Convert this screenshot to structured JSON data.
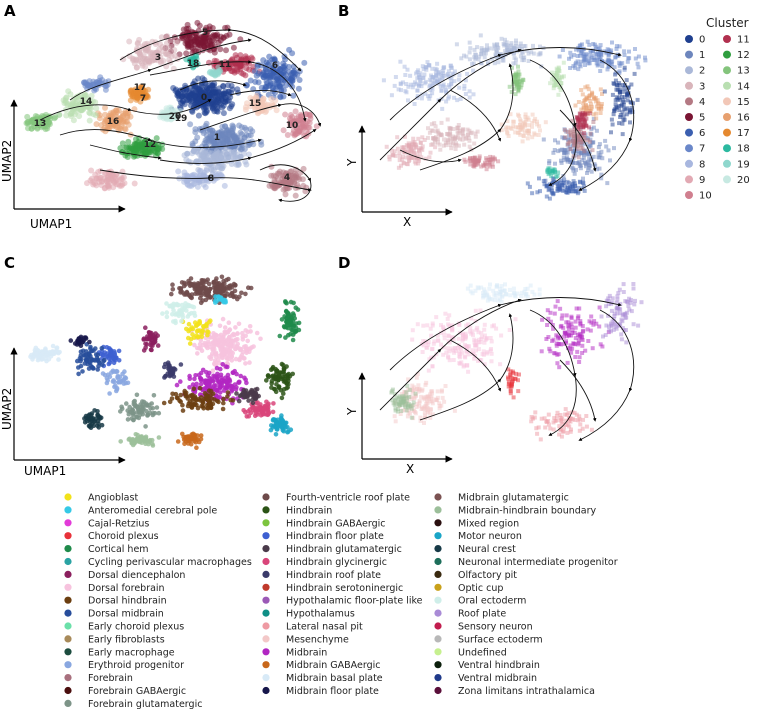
{
  "panels": {
    "A": {
      "letter": "A",
      "xlabel": "UMAP1",
      "ylabel": "UMAP2"
    },
    "B": {
      "letter": "B",
      "xlabel": "X",
      "ylabel": "Y"
    },
    "C": {
      "letter": "C",
      "xlabel": "UMAP1",
      "ylabel": "UMAP2"
    },
    "D": {
      "letter": "D",
      "xlabel": "X",
      "ylabel": "Y"
    }
  },
  "cluster_legend": {
    "title": "Cluster",
    "items": [
      {
        "label": "0",
        "color": "#1f3f8f"
      },
      {
        "label": "1",
        "color": "#6d86bd"
      },
      {
        "label": "2",
        "color": "#aab8d8"
      },
      {
        "label": "3",
        "color": "#d9b5bb"
      },
      {
        "label": "4",
        "color": "#b47983"
      },
      {
        "label": "5",
        "color": "#7a1533"
      },
      {
        "label": "6",
        "color": "#3b5fb0"
      },
      {
        "label": "7",
        "color": "#6a87c9"
      },
      {
        "label": "8",
        "color": "#a8b7df"
      },
      {
        "label": "9",
        "color": "#e2a9b3"
      },
      {
        "label": "10",
        "color": "#d07f8f"
      },
      {
        "label": "11",
        "color": "#b1304f"
      },
      {
        "label": "12",
        "color": "#2f9e3f"
      },
      {
        "label": "13",
        "color": "#84c47c"
      },
      {
        "label": "14",
        "color": "#b9dfb1"
      },
      {
        "label": "15",
        "color": "#f2c7b7"
      },
      {
        "label": "16",
        "color": "#e7a06f"
      },
      {
        "label": "17",
        "color": "#e5892f"
      },
      {
        "label": "18",
        "color": "#2cb9a0"
      },
      {
        "label": "19",
        "color": "#8fd7cd"
      },
      {
        "label": "20",
        "color": "#c7e9e2"
      }
    ]
  },
  "chart_data": [
    {
      "panel": "A",
      "type": "scatter",
      "title": "",
      "xlabel": "UMAP1",
      "ylabel": "UMAP2",
      "embedding": "UMAP with RNA velocity streamlines",
      "cluster_labels_shown": [
        "0",
        "1",
        "2",
        "3",
        "4",
        "5",
        "6",
        "8",
        "10",
        "11",
        "12",
        "13",
        "14",
        "15",
        "16",
        "17",
        "18",
        "20"
      ]
    },
    {
      "panel": "B",
      "type": "scatter",
      "title": "",
      "xlabel": "X",
      "ylabel": "Y",
      "embedding": "spatial coordinates with velocity streamlines, colored by cluster"
    },
    {
      "panel": "C",
      "type": "scatter",
      "title": "",
      "xlabel": "UMAP1",
      "ylabel": "UMAP2",
      "embedding": "UMAP colored by cell type"
    },
    {
      "panel": "D",
      "type": "scatter",
      "title": "",
      "xlabel": "X",
      "ylabel": "Y",
      "embedding": "spatial coordinates with velocity streamlines, colored by cell type"
    }
  ],
  "celltype_legend": {
    "columns": [
      [
        {
          "label": "Angioblast",
          "color": "#f2e21a"
        },
        {
          "label": "Anteromedial cerebral pole",
          "color": "#36c9e6"
        },
        {
          "label": "Cajal-Retzius",
          "color": "#e23bd8"
        },
        {
          "label": "Choroid plexus",
          "color": "#e8323a"
        },
        {
          "label": "Cortical hem",
          "color": "#1f8a4a"
        },
        {
          "label": "Cycling perivascular macrophages",
          "color": "#2aa3a3"
        },
        {
          "label": "Dorsal diencephalon",
          "color": "#8b1f5e"
        },
        {
          "label": "Dorsal forebrain",
          "color": "#f7c3de"
        },
        {
          "label": "Dorsal hindbrain",
          "color": "#6b3e10"
        },
        {
          "label": "Dorsal midbrain",
          "color": "#274d9b"
        },
        {
          "label": "Early choroid plexus",
          "color": "#6be0a9"
        },
        {
          "label": "Early fibroblasts",
          "color": "#a88a5a"
        },
        {
          "label": "Early macrophage",
          "color": "#1c4c3e"
        },
        {
          "label": "Erythroid progenitor",
          "color": "#89a7e0"
        },
        {
          "label": "Forebrain",
          "color": "#a8707e"
        },
        {
          "label": "Forebrain GABAergic",
          "color": "#4a0e0e"
        },
        {
          "label": "Forebrain glutamatergic",
          "color": "#7d9488"
        }
      ],
      [
        {
          "label": "Fourth-ventricle roof plate",
          "color": "#6e4a4a"
        },
        {
          "label": "Hindbrain",
          "color": "#2b5316"
        },
        {
          "label": "Hindbrain GABAergic",
          "color": "#7cc43e"
        },
        {
          "label": "Hindbrain floor plate",
          "color": "#3d5fd1"
        },
        {
          "label": "Hindbrain glutamatergic",
          "color": "#4a3a4a"
        },
        {
          "label": "Hindbrain glycinergic",
          "color": "#d9457a"
        },
        {
          "label": "Hindbrain roof plate",
          "color": "#3a3a6a"
        },
        {
          "label": "Hindbrain serotoninergic",
          "color": "#c0392b"
        },
        {
          "label": "Hypothalamic floor-plate like",
          "color": "#9b59b6"
        },
        {
          "label": "Hypothalamus",
          "color": "#0f8f86"
        },
        {
          "label": "Lateral nasal pit",
          "color": "#ee9aa3"
        },
        {
          "label": "Mesenchyme",
          "color": "#f3c8c8"
        },
        {
          "label": "Midbrain",
          "color": "#b126c2"
        },
        {
          "label": "Midbrain GABAergic",
          "color": "#c8671b"
        },
        {
          "label": "Midbrain basal plate",
          "color": "#d8eaf7"
        },
        {
          "label": "Midbrain floor plate",
          "color": "#16164a"
        }
      ],
      [
        {
          "label": "Midbrain glutamatergic",
          "color": "#7b5252"
        },
        {
          "label": "Midbrain-hindbrain boundary",
          "color": "#9cbf9a"
        },
        {
          "label": "Mixed region",
          "color": "#2a0f0f"
        },
        {
          "label": "Motor neuron",
          "color": "#1aa5c7"
        },
        {
          "label": "Neural crest",
          "color": "#173a47"
        },
        {
          "label": "Neuronal intermediate progenitor",
          "color": "#1d6e5a"
        },
        {
          "label": "Olfactory pit",
          "color": "#3a2a10"
        },
        {
          "label": "Optic cup",
          "color": "#c9a11a"
        },
        {
          "label": "Oral ectoderm",
          "color": "#cfeee9"
        },
        {
          "label": "Roof plate",
          "color": "#a98bd6"
        },
        {
          "label": "Sensory neuron",
          "color": "#c21d4e"
        },
        {
          "label": "Surface ectoderm",
          "color": "#b8b8b8"
        },
        {
          "label": "Undefined",
          "color": "#c6f08f"
        },
        {
          "label": "Ventral hindbrain",
          "color": "#0c1f0c"
        },
        {
          "label": "Ventral midbrain",
          "color": "#1f3a8a"
        },
        {
          "label": "Zona limitans intrathalamica",
          "color": "#5a0f3a"
        }
      ]
    ]
  }
}
